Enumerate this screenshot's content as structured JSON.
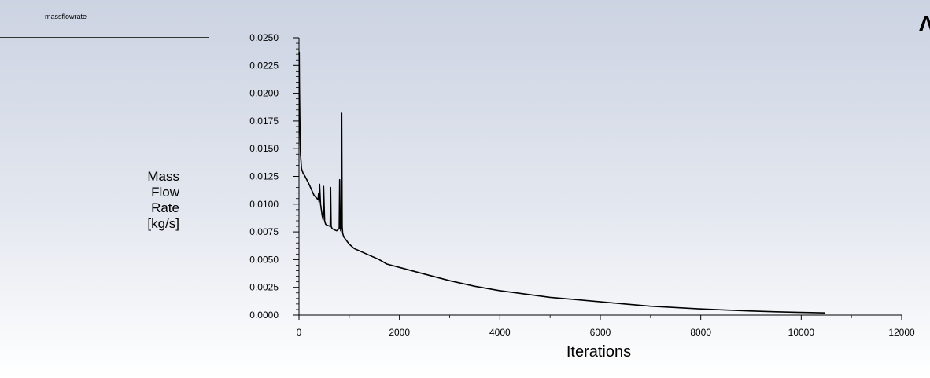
{
  "legend": {
    "label": "massflowrate"
  },
  "corner_mark": "Λ",
  "chart_data": {
    "type": "line",
    "xlabel": "Iterations",
    "ylabel_lines": [
      "Mass",
      "Flow",
      "Rate",
      "[kg/s]"
    ],
    "xlim": [
      0,
      12000
    ],
    "ylim": [
      0,
      0.025
    ],
    "xticks": [
      "0",
      "2000",
      "4000",
      "6000",
      "8000",
      "10000",
      "12000"
    ],
    "yticks": [
      "0.0000",
      "0.0025",
      "0.0050",
      "0.0075",
      "0.0100",
      "0.0125",
      "0.0150",
      "0.0175",
      "0.0200",
      "0.0225",
      "0.0250"
    ],
    "grid": false,
    "legend_position": "top-left",
    "series": [
      {
        "name": "massflowrate",
        "color": "#000000",
        "x": [
          0,
          5,
          10,
          20,
          30,
          50,
          80,
          120,
          200,
          300,
          380,
          390,
          400,
          410,
          430,
          460,
          480,
          490,
          510,
          530,
          560,
          620,
          630,
          640,
          660,
          700,
          750,
          800,
          810,
          820,
          830,
          840,
          850,
          860,
          870,
          880,
          890,
          900,
          950,
          1000,
          1100,
          1200,
          1400,
          1600,
          1750,
          2000,
          2500,
          3000,
          3500,
          4000,
          4500,
          5000,
          5500,
          6000,
          6500,
          7000,
          7500,
          8000,
          8500,
          9000,
          9500,
          10000,
          10480
        ],
        "y": [
          0.0235,
          0.0237,
          0.0205,
          0.0165,
          0.0145,
          0.0132,
          0.0128,
          0.0125,
          0.0118,
          0.0108,
          0.0104,
          0.011,
          0.0102,
          0.0118,
          0.01,
          0.009,
          0.0086,
          0.0116,
          0.0085,
          0.0082,
          0.0081,
          0.008,
          0.0115,
          0.008,
          0.0078,
          0.0077,
          0.0076,
          0.0078,
          0.0122,
          0.0082,
          0.0076,
          0.0078,
          0.0182,
          0.008,
          0.0074,
          0.0072,
          0.0071,
          0.007,
          0.0067,
          0.0064,
          0.006,
          0.0058,
          0.0054,
          0.005,
          0.0046,
          0.0043,
          0.0037,
          0.0031,
          0.0026,
          0.0022,
          0.0019,
          0.0016,
          0.0014,
          0.0012,
          0.001,
          0.0008,
          0.00068,
          0.00055,
          0.00045,
          0.00037,
          0.0003,
          0.00024,
          0.0002
        ]
      }
    ]
  }
}
